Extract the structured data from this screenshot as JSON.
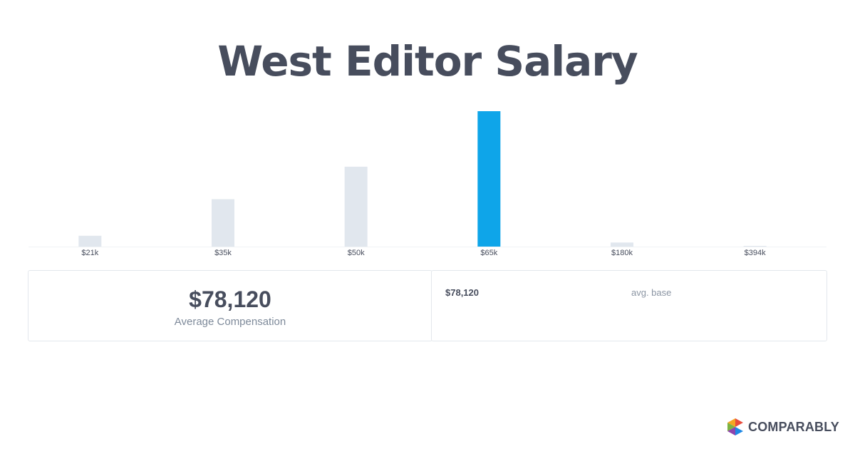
{
  "page": {
    "title": "West Editor Salary"
  },
  "chart_data": {
    "type": "bar",
    "categories": [
      "$21k",
      "$35k",
      "$50k",
      "$65k",
      "$180k",
      "$394k"
    ],
    "values": [
      8,
      35,
      59,
      100,
      3,
      0.5
    ],
    "highlight_index": 3,
    "ylim": [
      0,
      100
    ],
    "grid": false,
    "title": "",
    "xlabel": "",
    "ylabel": "",
    "colors": {
      "bar": "#e1e7ee",
      "highlight": "#0ea5e9",
      "axis": "#f0f2f5"
    }
  },
  "summary": {
    "value": "$78,120",
    "caption": "Average Compensation"
  },
  "breakdown": [
    {
      "value": "$78,120",
      "label": "avg. base"
    }
  ],
  "brand": {
    "name": "COMPARABLY",
    "logo_icon": "comparably-logo-icon",
    "colors": [
      "#e94b3c",
      "#f5a623",
      "#7cb342",
      "#1e88e5",
      "#8e44ad"
    ]
  }
}
